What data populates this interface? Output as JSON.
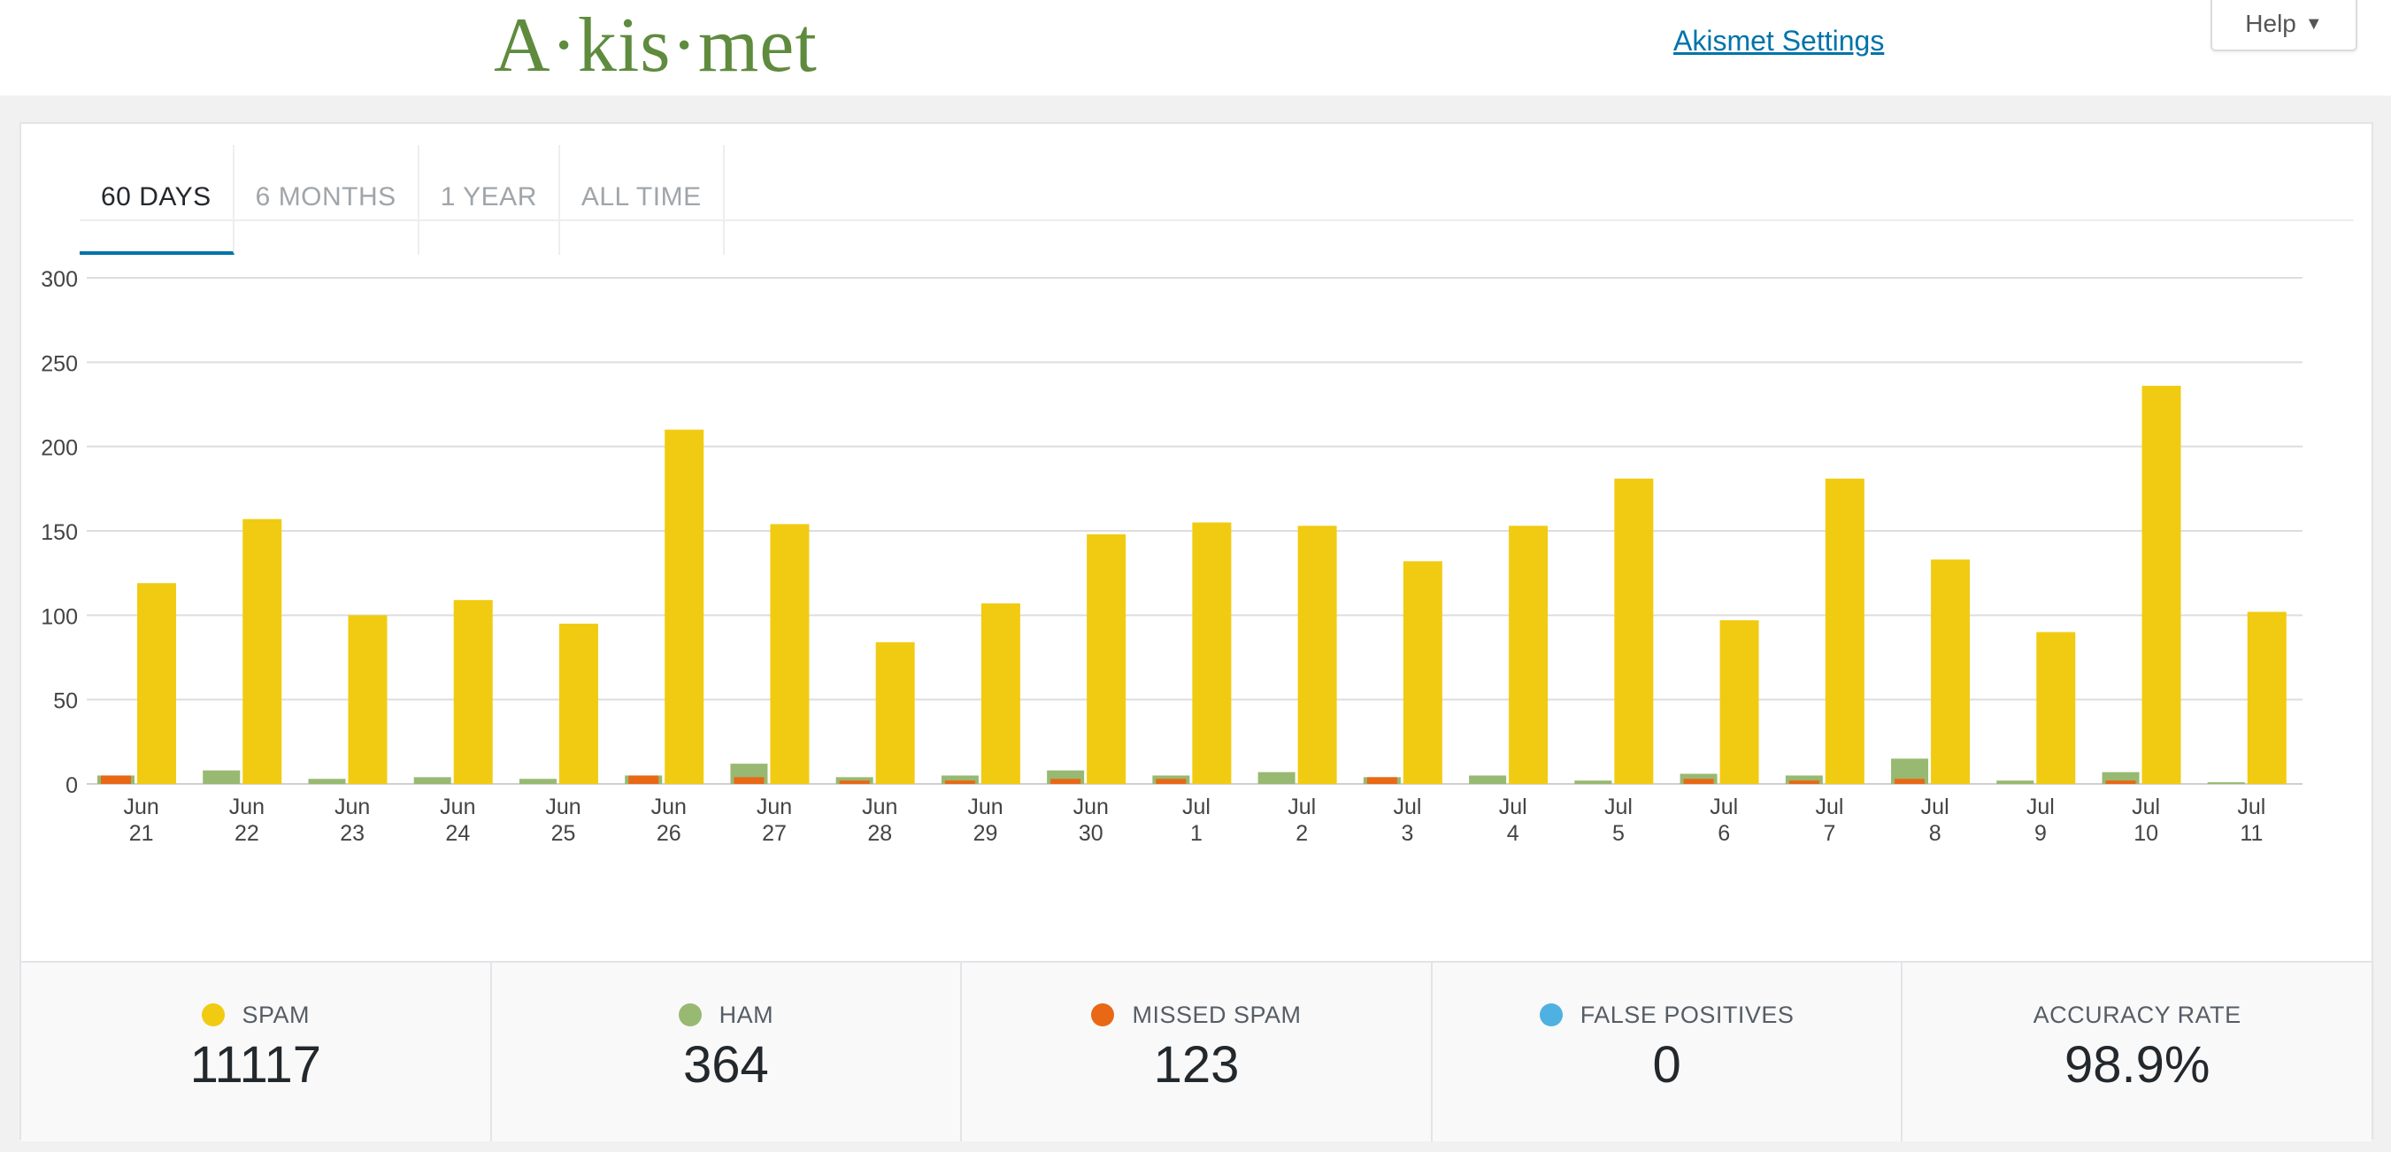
{
  "header": {
    "logo": "A·kis·met",
    "settings_link": "Akismet Settings",
    "help_label": "Help",
    "help_caret": "▼"
  },
  "tabs": [
    {
      "label": "60 DAYS",
      "active": true
    },
    {
      "label": "6 MONTHS",
      "active": false
    },
    {
      "label": "1 YEAR",
      "active": false
    },
    {
      "label": "ALL TIME",
      "active": false
    }
  ],
  "colors": {
    "spam": "#f1cb11",
    "ham": "#98b971",
    "missed_spam": "#e86816",
    "false_positives": "#4fb1e1"
  },
  "chart_data": {
    "type": "bar",
    "categories": [
      [
        "Jun",
        "21"
      ],
      [
        "Jun",
        "22"
      ],
      [
        "Jun",
        "23"
      ],
      [
        "Jun",
        "24"
      ],
      [
        "Jun",
        "25"
      ],
      [
        "Jun",
        "26"
      ],
      [
        "Jun",
        "27"
      ],
      [
        "Jun",
        "28"
      ],
      [
        "Jun",
        "29"
      ],
      [
        "Jun",
        "30"
      ],
      [
        "Jul",
        "1"
      ],
      [
        "Jul",
        "2"
      ],
      [
        "Jul",
        "3"
      ],
      [
        "Jul",
        "4"
      ],
      [
        "Jul",
        "5"
      ],
      [
        "Jul",
        "6"
      ],
      [
        "Jul",
        "7"
      ],
      [
        "Jul",
        "8"
      ],
      [
        "Jul",
        "9"
      ],
      [
        "Jul",
        "10"
      ],
      [
        "Jul",
        "11"
      ]
    ],
    "ylim": [
      0,
      300
    ],
    "yticks": [
      0,
      50,
      100,
      150,
      200,
      250,
      300
    ],
    "grid": true,
    "series": [
      {
        "name": "SPAM",
        "color": "#f1cb11",
        "values": [
          119,
          157,
          100,
          109,
          95,
          210,
          154,
          84,
          107,
          148,
          155,
          153,
          132,
          153,
          181,
          97,
          181,
          133,
          90,
          236,
          102
        ]
      },
      {
        "name": "HAM",
        "color": "#98b971",
        "values": [
          5,
          8,
          3,
          4,
          3,
          5,
          12,
          4,
          5,
          8,
          5,
          7,
          4,
          5,
          2,
          6,
          5,
          15,
          2,
          7,
          1
        ]
      },
      {
        "name": "MISSED SPAM",
        "color": "#e86816",
        "values": [
          5,
          0,
          0,
          0,
          0,
          5,
          4,
          2,
          2,
          3,
          3,
          0,
          4,
          0,
          0,
          3,
          2,
          3,
          0,
          2,
          0
        ]
      }
    ]
  },
  "stats": [
    {
      "label": "SPAM",
      "value": "11117",
      "dot": "#f1cb11"
    },
    {
      "label": "HAM",
      "value": "364",
      "dot": "#98b971"
    },
    {
      "label": "MISSED SPAM",
      "value": "123",
      "dot": "#e86816"
    },
    {
      "label": "FALSE POSITIVES",
      "value": "0",
      "dot": "#4fb1e1"
    },
    {
      "label": "ACCURACY RATE",
      "value": "98.9%",
      "dot": ""
    }
  ]
}
